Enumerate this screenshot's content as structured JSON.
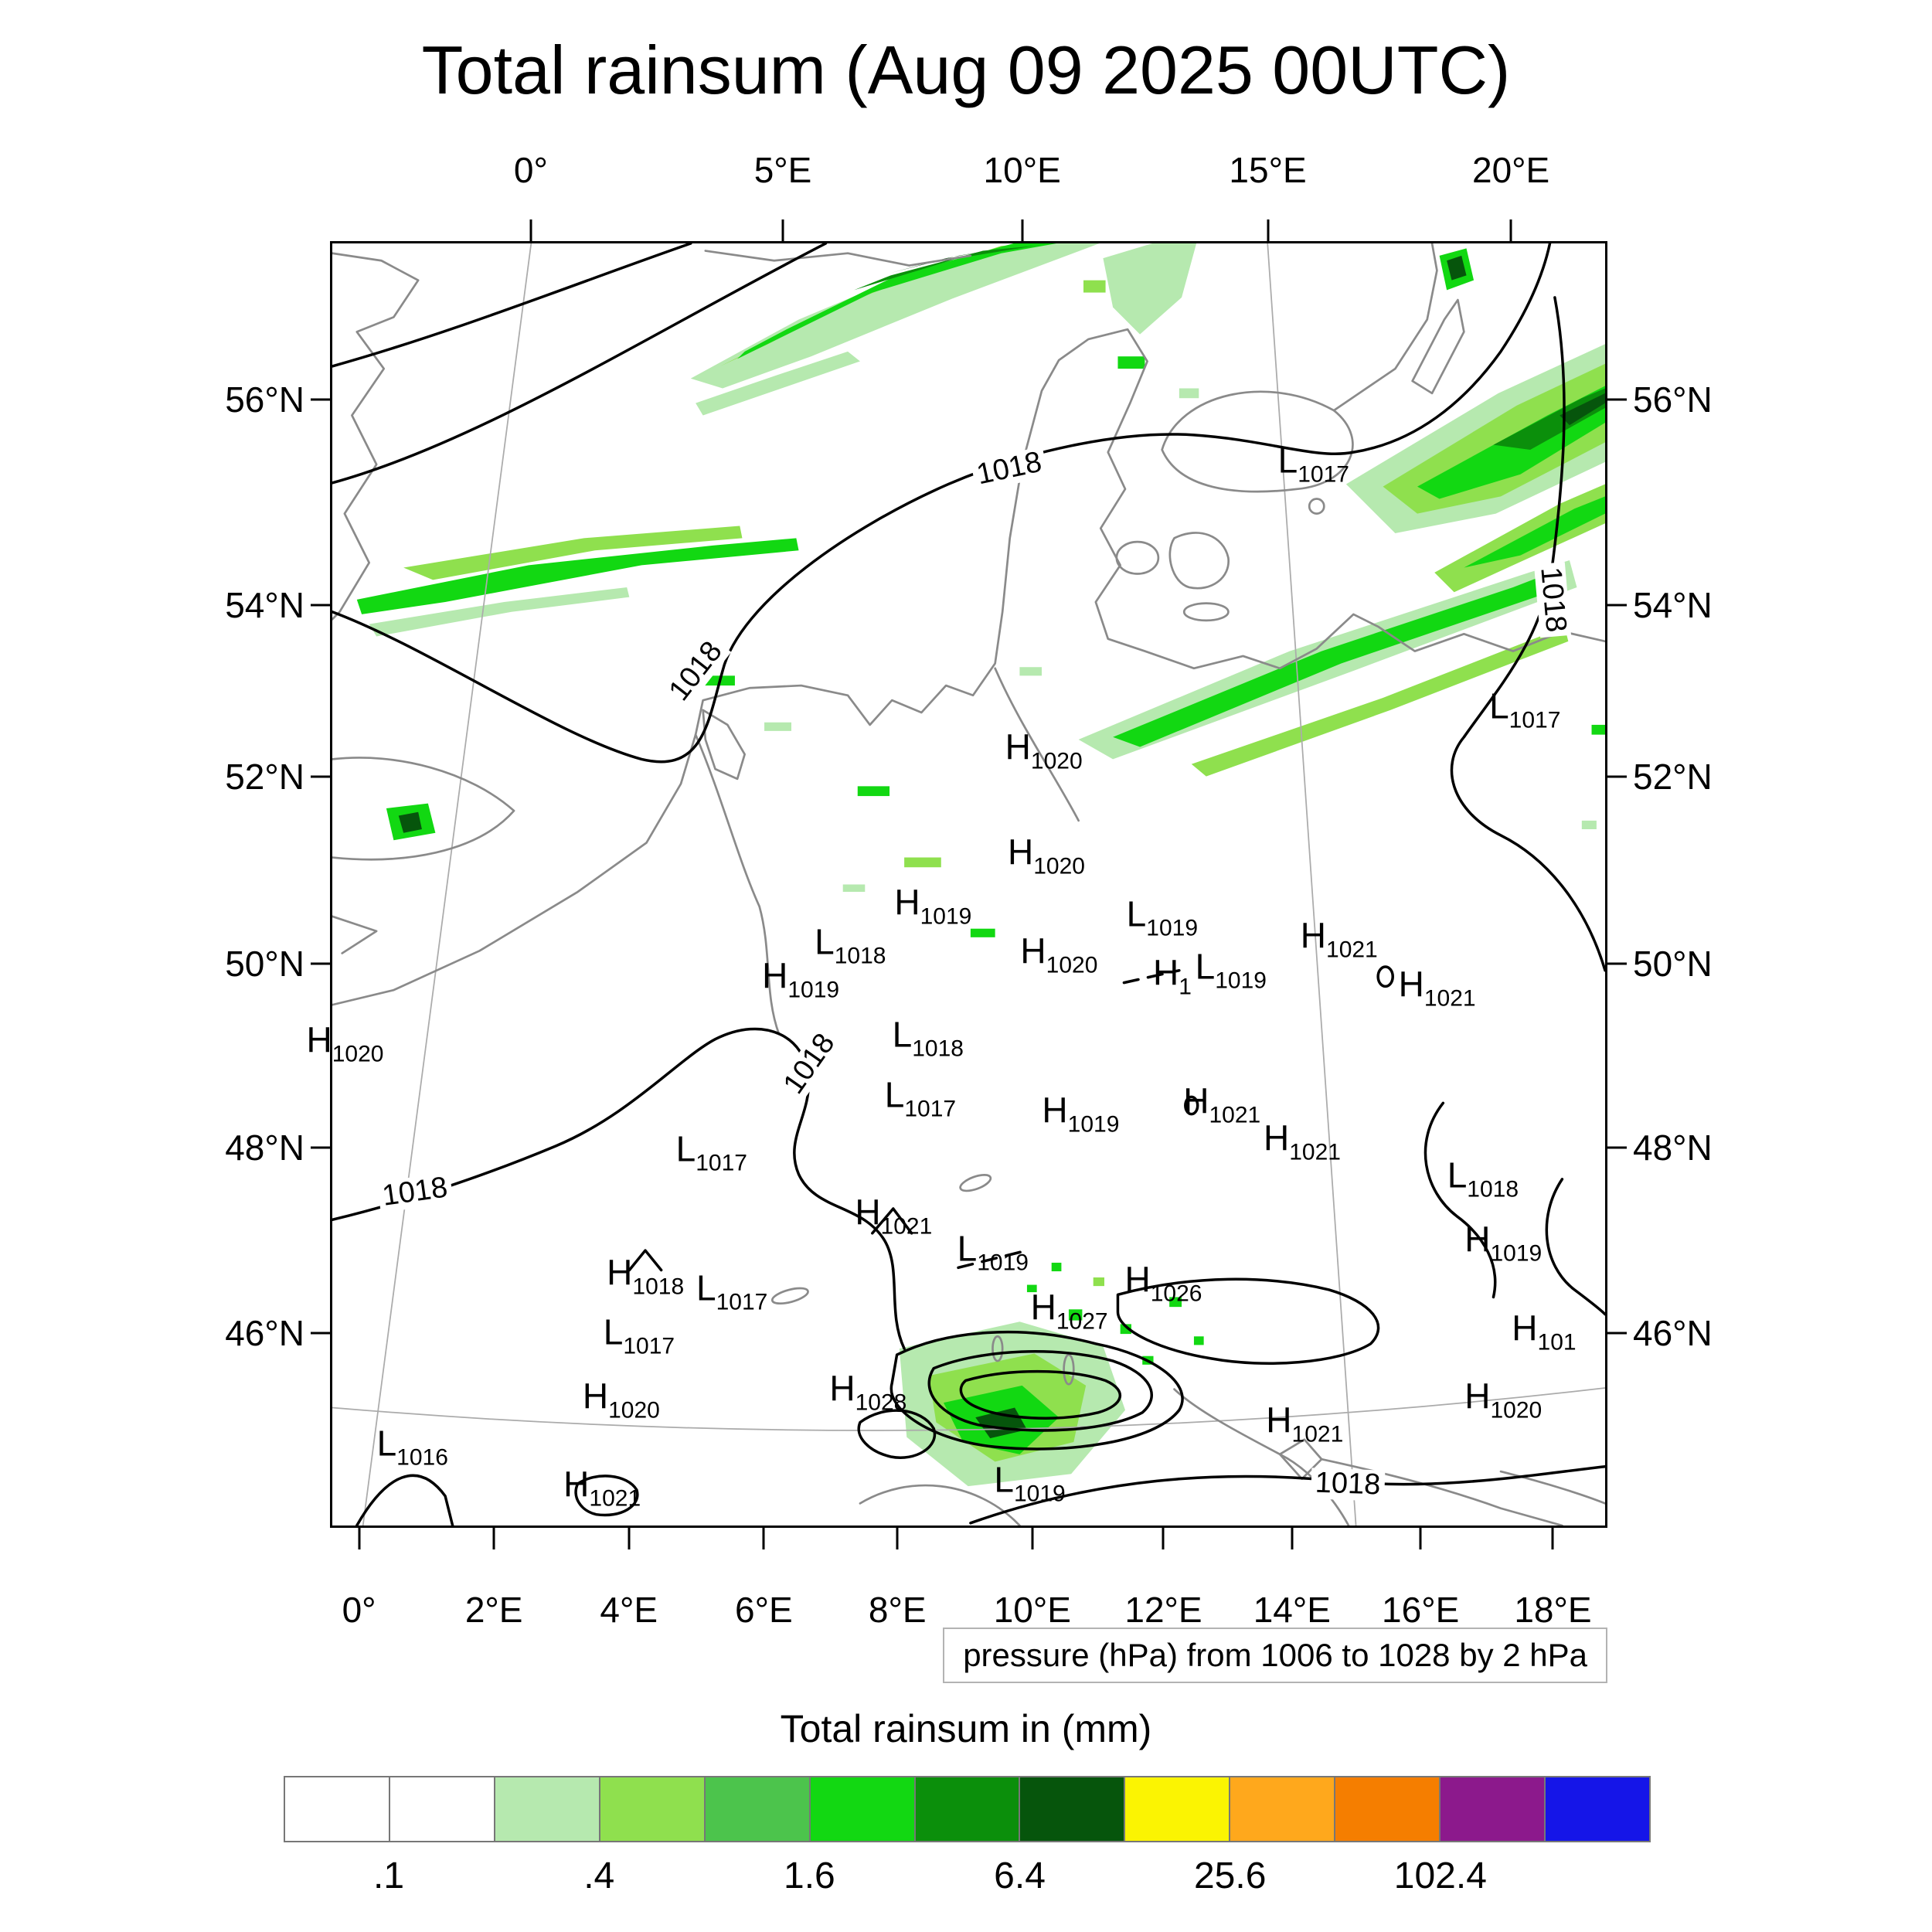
{
  "chart_data": {
    "type": "heatmap",
    "title": "Total rainsum (Aug 09 2025 00UTC)",
    "caption": "pressure (hPa) from 1006 to 1028 by 2 hPa",
    "legend_title": "Total rainsum in (mm)",
    "pressure_contour_interval_hpa": 2,
    "pressure_range_hpa": [
      1006,
      1028
    ],
    "rain_scale_mm": [
      0.1,
      0.2,
      0.4,
      0.8,
      1.6,
      3.2,
      6.4,
      12.8,
      25.6,
      51.2,
      102.4
    ],
    "axes": {
      "top": [
        {
          "label": "0°",
          "x_pct": 15.6
        },
        {
          "label": "5°E",
          "x_pct": 35.4
        },
        {
          "label": "10°E",
          "x_pct": 54.2
        },
        {
          "label": "15°E",
          "x_pct": 73.5
        },
        {
          "label": "20°E",
          "x_pct": 92.6
        }
      ],
      "bottom": [
        {
          "label": "0°",
          "x_pct": 2.1
        },
        {
          "label": "2°E",
          "x_pct": 12.7
        },
        {
          "label": "4°E",
          "x_pct": 23.3
        },
        {
          "label": "6°E",
          "x_pct": 33.9
        },
        {
          "label": "8°E",
          "x_pct": 44.4
        },
        {
          "label": "10°E",
          "x_pct": 55.0
        },
        {
          "label": "12°E",
          "x_pct": 65.3
        },
        {
          "label": "14°E",
          "x_pct": 75.4
        },
        {
          "label": "16°E",
          "x_pct": 85.5
        },
        {
          "label": "18°E",
          "x_pct": 95.9
        }
      ],
      "left": [
        {
          "label": "56°N",
          "y_pct": 12.2
        },
        {
          "label": "54°N",
          "y_pct": 28.2
        },
        {
          "label": "52°N",
          "y_pct": 41.6
        },
        {
          "label": "50°N",
          "y_pct": 56.2
        },
        {
          "label": "48°N",
          "y_pct": 70.5
        },
        {
          "label": "46°N",
          "y_pct": 85.0
        }
      ],
      "right": [
        {
          "label": "56°N",
          "y_pct": 12.2
        },
        {
          "label": "54°N",
          "y_pct": 28.2
        },
        {
          "label": "52°N",
          "y_pct": 41.6
        },
        {
          "label": "50°N",
          "y_pct": 56.2
        },
        {
          "label": "48°N",
          "y_pct": 70.5
        },
        {
          "label": "46°N",
          "y_pct": 85.0
        }
      ]
    },
    "legend": {
      "colors": [
        "#ffffff",
        "#ffffff",
        "#b6e9af",
        "#8fe04e",
        "#4cc44c",
        "#12d812",
        "#0b8f0b",
        "#06550c",
        "#fbf402",
        "#ffa81c",
        "#f57e00",
        "#8c198c",
        "#1515e8"
      ],
      "tick_labels": [
        {
          "text": ".1",
          "boundary": 1
        },
        {
          "text": ".4",
          "boundary": 3
        },
        {
          "text": "1.6",
          "boundary": 5
        },
        {
          "text": "6.4",
          "boundary": 7
        },
        {
          "text": "25.6",
          "boundary": 9
        },
        {
          "text": "102.4",
          "boundary": 11
        }
      ]
    },
    "pressure_centers": [
      {
        "letter": "L",
        "value": "1017",
        "x_pct": 77.1,
        "y_pct": 17.4
      },
      {
        "letter": "L",
        "value": "1017",
        "x_pct": 93.7,
        "y_pct": 36.6
      },
      {
        "letter": "H",
        "value": "1020",
        "x_pct": 55.9,
        "y_pct": 39.8
      },
      {
        "letter": "H",
        "value": "1020",
        "x_pct": 56.1,
        "y_pct": 48.0
      },
      {
        "letter": "H",
        "value": "1019",
        "x_pct": 47.2,
        "y_pct": 51.9
      },
      {
        "letter": "L",
        "value": "1019",
        "x_pct": 65.2,
        "y_pct": 52.8
      },
      {
        "letter": "H",
        "value": "1021",
        "x_pct": 79.1,
        "y_pct": 54.5
      },
      {
        "letter": "L",
        "value": "1018",
        "x_pct": 40.7,
        "y_pct": 55.0
      },
      {
        "letter": "H",
        "value": "1020",
        "x_pct": 57.1,
        "y_pct": 55.7
      },
      {
        "letter": "H",
        "value": "1019",
        "x_pct": 36.8,
        "y_pct": 57.6
      },
      {
        "letter": "H",
        "value": "1",
        "x_pct": 66.0,
        "y_pct": 57.4
      },
      {
        "letter": "L",
        "value": "1019",
        "x_pct": 70.6,
        "y_pct": 56.9
      },
      {
        "letter": "H",
        "value": "1021",
        "x_pct": 86.8,
        "y_pct": 58.3
      },
      {
        "letter": "H",
        "value": "1020",
        "x_pct": 1.0,
        "y_pct": 62.6
      },
      {
        "letter": "L",
        "value": "1018",
        "x_pct": 46.8,
        "y_pct": 62.2
      },
      {
        "letter": "L",
        "value": "1017",
        "x_pct": 46.2,
        "y_pct": 66.9
      },
      {
        "letter": "H",
        "value": "1019",
        "x_pct": 58.8,
        "y_pct": 68.1
      },
      {
        "letter": "H",
        "value": "1021",
        "x_pct": 69.9,
        "y_pct": 67.4
      },
      {
        "letter": "H",
        "value": "1021",
        "x_pct": 76.2,
        "y_pct": 70.3
      },
      {
        "letter": "L",
        "value": "1017",
        "x_pct": 29.8,
        "y_pct": 71.1
      },
      {
        "letter": "L",
        "value": "1018",
        "x_pct": 90.4,
        "y_pct": 73.2
      },
      {
        "letter": "H",
        "value": "1021",
        "x_pct": 44.1,
        "y_pct": 76.1
      },
      {
        "letter": "L",
        "value": "1019",
        "x_pct": 51.9,
        "y_pct": 78.9
      },
      {
        "letter": "H",
        "value": "1018",
        "x_pct": 24.6,
        "y_pct": 80.8
      },
      {
        "letter": "L",
        "value": "1017",
        "x_pct": 31.4,
        "y_pct": 82.0
      },
      {
        "letter": "H",
        "value": "1026",
        "x_pct": 65.3,
        "y_pct": 81.3
      },
      {
        "letter": "H",
        "value": "1027",
        "x_pct": 57.9,
        "y_pct": 83.5
      },
      {
        "letter": "H",
        "value": "1019",
        "x_pct": 92.0,
        "y_pct": 78.2
      },
      {
        "letter": "L",
        "value": "1017",
        "x_pct": 24.1,
        "y_pct": 85.4
      },
      {
        "letter": "H",
        "value": "101",
        "x_pct": 95.2,
        "y_pct": 85.1
      },
      {
        "letter": "H",
        "value": "1020",
        "x_pct": 22.7,
        "y_pct": 90.4
      },
      {
        "letter": "H",
        "value": "1028",
        "x_pct": 42.1,
        "y_pct": 89.8
      },
      {
        "letter": "H",
        "value": "1021",
        "x_pct": 76.4,
        "y_pct": 92.3
      },
      {
        "letter": "H",
        "value": "1020",
        "x_pct": 92.0,
        "y_pct": 90.4
      },
      {
        "letter": "L",
        "value": "1016",
        "x_pct": 6.3,
        "y_pct": 94.1
      },
      {
        "letter": "H",
        "value": "1021",
        "x_pct": 21.2,
        "y_pct": 97.3
      },
      {
        "letter": "L",
        "value": "1019",
        "x_pct": 54.8,
        "y_pct": 96.9
      }
    ],
    "contour_labels": [
      {
        "text": "1018",
        "x_pct": 53.2,
        "y_pct": 17.6,
        "rot": -12
      },
      {
        "text": "1018",
        "x_pct": 28.6,
        "y_pct": 33.4,
        "rot": -52
      },
      {
        "text": "1018",
        "x_pct": 95.9,
        "y_pct": 27.8,
        "rot": 85
      },
      {
        "text": "1018",
        "x_pct": 37.5,
        "y_pct": 64.0,
        "rot": -55
      },
      {
        "text": "1018",
        "x_pct": 6.5,
        "y_pct": 74.0,
        "rot": -8
      },
      {
        "text": "1018",
        "x_pct": 79.8,
        "y_pct": 96.8,
        "rot": 2
      }
    ]
  }
}
